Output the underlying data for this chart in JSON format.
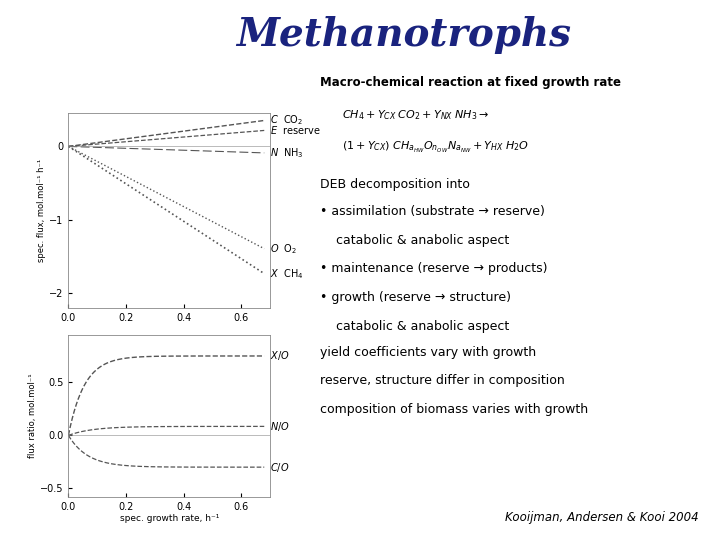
{
  "title": "Methanotrophs",
  "title_color": "#1A237E",
  "title_fontsize": 28,
  "background_color": "#FFFFFF",
  "top_plot": {
    "ylabel": "spec. flux, mol.mol⁻¹ h⁻¹",
    "xlim": [
      0,
      0.7
    ],
    "ylim": [
      -2.2,
      0.45
    ],
    "xticks": [
      0,
      0.2,
      0.4,
      0.6
    ],
    "yticks": [
      -2,
      -1,
      0
    ]
  },
  "bottom_plot": {
    "xlabel": "spec. growth rate, h⁻¹",
    "ylabel": "flux ratio, mol.mol⁻¹",
    "xlim": [
      0,
      0.7
    ],
    "ylim": [
      -0.58,
      0.95
    ],
    "xticks": [
      0,
      0.2,
      0.4,
      0.6
    ],
    "yticks": [
      -0.5,
      0,
      0.5
    ]
  },
  "macro_chem_title": "Macro-chemical reaction at fixed growth rate",
  "deb_title": "DEB decomposition into",
  "deb_lines": [
    "• assimilation (substrate → reserve)",
    "    catabolic & anabolic aspect",
    "• maintenance (reserve → products)",
    "• growth (reserve → structure)",
    "    catabolic & anabolic aspect"
  ],
  "yield_lines": [
    "yield coefficients vary with growth",
    "reserve, structure differ in composition",
    "composition of biomass varies with growth"
  ],
  "citation": "Kooijman, Andersen & Kooi 2004"
}
